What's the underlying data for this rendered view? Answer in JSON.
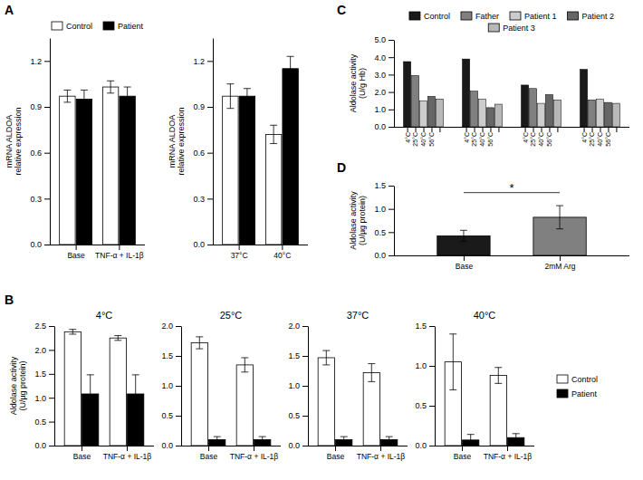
{
  "chart_data": [
    {
      "type": "bar",
      "ylabel": "mRNA ALDOA\nrelative expression",
      "categories": [
        "Base",
        "TNF-α + IL-1β"
      ],
      "series": [
        {
          "name": "Control",
          "color": "#ffffff",
          "values": [
            0.97,
            1.03
          ],
          "errors": [
            0.04,
            0.04
          ]
        },
        {
          "name": "Patient",
          "color": "#000000",
          "values": [
            0.95,
            0.97
          ],
          "errors": [
            0.06,
            0.06
          ]
        }
      ],
      "ylim": [
        0,
        1.35
      ],
      "yticks": [
        {
          "value": 0,
          "label": "0.0"
        },
        0.3,
        0.6,
        0.9,
        1.2
      ],
      "legend": "top",
      "annotations": [
        {
          "text": "A"
        }
      ]
    },
    {
      "type": "bar",
      "ylabel": "mRNA ALDOA\nrelative expression",
      "categories": [
        "37°C",
        "40°C"
      ],
      "series": [
        {
          "color": "#ffffff",
          "values": [
            0.97,
            0.72
          ],
          "errors": [
            0.08,
            0.06
          ]
        },
        {
          "color": "#000000",
          "values": [
            0.97,
            1.15
          ],
          "errors": [
            0.05,
            0.08
          ]
        }
      ],
      "ylim": [
        0,
        1.35
      ],
      "yticks": [
        {
          "value": 0,
          "label": "0.0"
        },
        0.3,
        0.6,
        0.9,
        1.2
      ]
    },
    {
      "type": "bar",
      "ylabel": "Aldolase activity\n(U/g Hb)",
      "categories": [
        "4°C",
        "25°C",
        "40°C",
        "56°C",
        null,
        "4°C",
        "25°C",
        "40°C",
        "56°C",
        null,
        "4°C",
        "25°C",
        "40°C",
        "56°C",
        null,
        "4°C",
        "25°C",
        "40°C",
        "56°C",
        null
      ],
      "series": [
        {
          "name": "Control",
          "color": "#1a1a1a",
          "values": [
            3.75,
            null,
            null,
            null,
            null,
            3.9,
            null,
            null,
            null,
            null,
            2.4,
            null,
            null,
            null,
            null,
            3.3,
            null,
            null,
            null,
            null
          ]
        },
        {
          "name": "Father",
          "color": "#808080",
          "values": [
            null,
            2.95,
            null,
            null,
            null,
            null,
            2.05,
            null,
            null,
            null,
            null,
            2.2,
            null,
            null,
            null,
            null,
            1.55,
            null,
            null,
            null
          ]
        },
        {
          "name": "Patient 1",
          "color": "#cccccc",
          "values": [
            null,
            null,
            1.5,
            null,
            null,
            null,
            null,
            1.6,
            null,
            null,
            null,
            null,
            1.35,
            null,
            null,
            null,
            null,
            1.6,
            null,
            null
          ]
        },
        {
          "name": "Patient 2",
          "color": "#666666",
          "values": [
            null,
            null,
            null,
            1.75,
            null,
            null,
            null,
            null,
            1.1,
            null,
            null,
            null,
            null,
            1.85,
            null,
            null,
            null,
            null,
            1.4,
            null
          ]
        },
        {
          "name": "Patient 3",
          "color": "#b8b8b8",
          "values": [
            null,
            null,
            null,
            null,
            1.6,
            null,
            null,
            null,
            null,
            1.3,
            null,
            null,
            null,
            null,
            1.55,
            null,
            null,
            null,
            null,
            1.35
          ]
        }
      ],
      "ylim": [
        0,
        5
      ],
      "yticks": [
        {
          "value": 0,
          "label": "0.0"
        },
        {
          "value": 1,
          "label": "1.0"
        },
        {
          "value": 2,
          "label": "2.0"
        },
        {
          "value": 3,
          "label": "3.0"
        },
        {
          "value": 4,
          "label": "4.0"
        },
        {
          "value": 5,
          "label": "5.0"
        }
      ],
      "legend": "top",
      "annotations": [
        {
          "text": "C"
        }
      ]
    },
    {
      "type": "bar",
      "ylabel": "Aldolase activity\n(U/µg protein)",
      "categories": [
        "Base",
        "2mM Arg"
      ],
      "values": [
        0.42,
        0.82
      ],
      "errors": [
        0.12,
        0.25
      ],
      "colors": [
        "#1a1a1a",
        "#808080"
      ],
      "ylim": [
        0,
        1.5
      ],
      "yticks": [
        {
          "value": 0,
          "label": "0.0"
        },
        0.5,
        {
          "value": 1,
          "label": "1.0"
        },
        1.5
      ],
      "annotations": [
        {
          "text": "D"
        },
        {
          "text": "*",
          "y": 1.35
        }
      ]
    },
    {
      "type": "bar",
      "title": "4°C",
      "ylabel": "Aldolase activity\n(U/µg protein)",
      "categories": [
        "Base",
        "TNF-α + IL-1β"
      ],
      "series": [
        {
          "color": "#ffffff",
          "values": [
            2.38,
            2.25
          ],
          "errors": [
            0.05,
            0.05
          ]
        },
        {
          "color": "#000000",
          "values": [
            1.08,
            1.08
          ],
          "errors": [
            0.4,
            0.4
          ]
        }
      ],
      "ylim": [
        0,
        2.5
      ],
      "yticks": [
        {
          "value": 0,
          "label": "0.0"
        },
        0.5,
        {
          "value": 1,
          "label": "1.0"
        },
        1.5,
        {
          "value": 2,
          "label": "2.0"
        },
        2.5
      ],
      "annotations": [
        {
          "text": "B"
        }
      ]
    },
    {
      "type": "bar",
      "title": "25°C",
      "categories": [
        "Base",
        "TNF-α + IL-1β"
      ],
      "series": [
        {
          "color": "#ffffff",
          "values": [
            1.72,
            1.35
          ],
          "errors": [
            0.1,
            0.12
          ]
        },
        {
          "color": "#000000",
          "values": [
            0.1,
            0.1
          ],
          "errors": [
            0.05,
            0.05
          ]
        }
      ],
      "ylim": [
        0,
        2
      ],
      "yticks": [
        {
          "value": 0,
          "label": "0.0"
        },
        0.5,
        {
          "value": 1,
          "label": "1.0"
        },
        1.5,
        {
          "value": 2,
          "label": "2.0"
        }
      ]
    },
    {
      "type": "bar",
      "title": "37°C",
      "categories": [
        "Base",
        "TNF-α + IL-1β"
      ],
      "series": [
        {
          "color": "#ffffff",
          "values": [
            1.47,
            1.22
          ],
          "errors": [
            0.12,
            0.15
          ]
        },
        {
          "color": "#000000",
          "values": [
            0.1,
            0.1
          ],
          "errors": [
            0.05,
            0.05
          ]
        }
      ],
      "ylim": [
        0,
        2
      ],
      "yticks": [
        {
          "value": 0,
          "label": "0.0"
        },
        0.5,
        {
          "value": 1,
          "label": "1.0"
        },
        1.5,
        {
          "value": 2,
          "label": "2.0"
        }
      ]
    },
    {
      "type": "bar",
      "title": "40°C",
      "categories": [
        "Base",
        "TNF-α + IL-1β"
      ],
      "series": [
        {
          "name": "Control",
          "color": "#ffffff",
          "values": [
            1.05,
            0.88
          ],
          "errors": [
            0.35,
            0.1
          ]
        },
        {
          "name": "Patient",
          "color": "#000000",
          "values": [
            0.07,
            0.1
          ],
          "errors": [
            0.07,
            0.05
          ]
        }
      ],
      "ylim": [
        0,
        1.5
      ],
      "yticks": [
        {
          "value": 0,
          "label": "0.0"
        },
        0.5,
        {
          "value": 1,
          "label": "1.0"
        },
        1.5
      ],
      "legend": "right"
    }
  ]
}
